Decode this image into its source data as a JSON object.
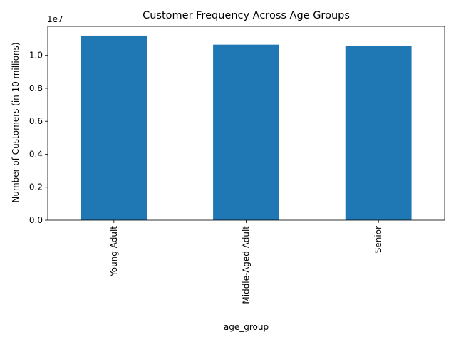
{
  "chart_data": {
    "type": "bar",
    "title": "Customer Frequency Across Age Groups",
    "xlabel": "age_group",
    "ylabel": "Number of Customers (in 10 millions)",
    "offset_text": "1e7",
    "categories": [
      "Young Adult",
      "Middle-Aged Adult",
      "Senior"
    ],
    "values": [
      11200000,
      10650000,
      10580000
    ],
    "ylim": [
      0,
      11760000
    ],
    "yticks": [
      0,
      2000000,
      4000000,
      6000000,
      8000000,
      10000000
    ],
    "ytick_labels": [
      "0.0",
      "0.2",
      "0.4",
      "0.6",
      "0.8",
      "1.0"
    ],
    "grid": false,
    "legend": "none",
    "bar_color": "#1f77b4"
  }
}
